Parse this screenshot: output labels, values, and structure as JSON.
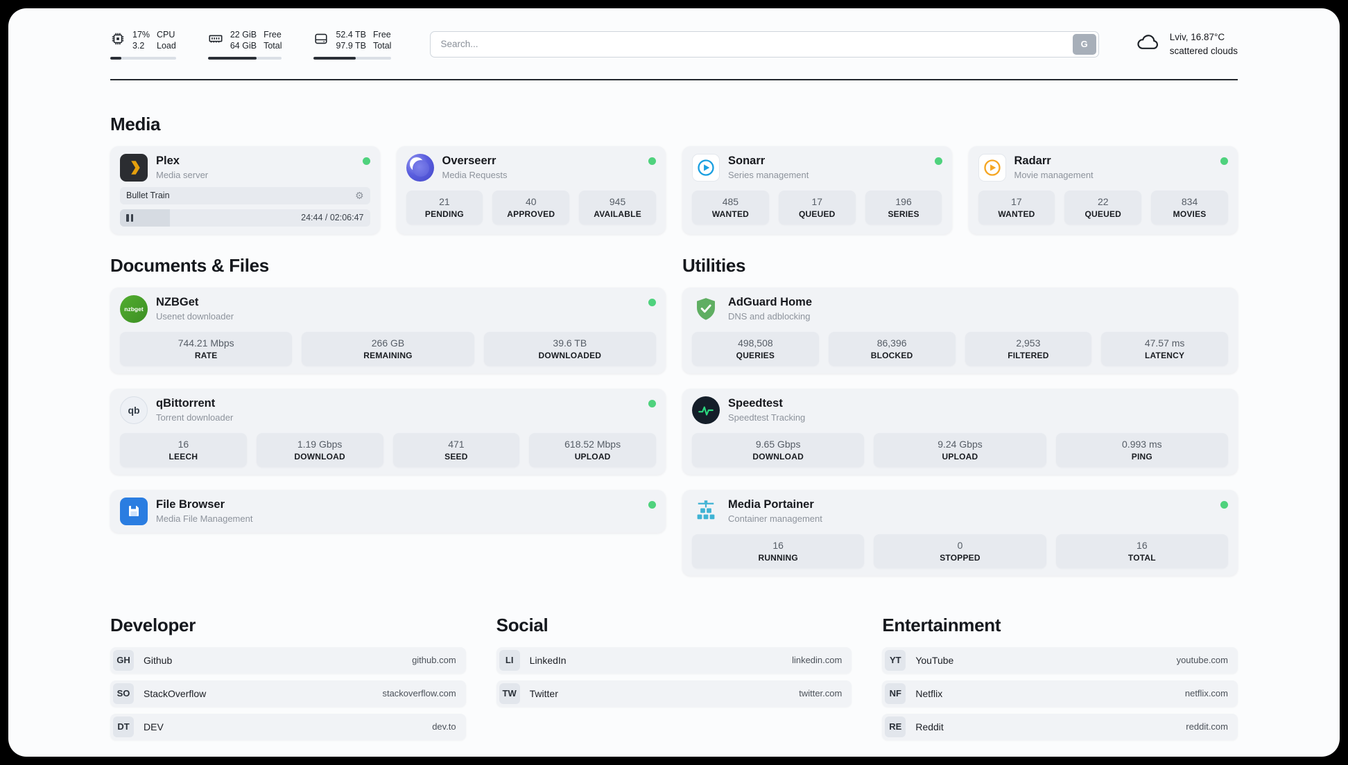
{
  "topbar": {
    "cpu": {
      "line1": "17%",
      "line2": "3.2",
      "label1": "CPU",
      "label2": "Load",
      "percent": 17
    },
    "memory": {
      "line1": "22 GiB",
      "line2": "64 GiB",
      "label1": "Free",
      "label2": "Total",
      "percent": 66
    },
    "disk": {
      "line1": "52.4 TB",
      "line2": "97.9 TB",
      "label1": "Free",
      "label2": "Total",
      "percent": 54
    },
    "search": {
      "placeholder": "Search...",
      "engine_label": "G"
    },
    "weather": {
      "location": "Lviv, 16.87°C",
      "condition": "scattered clouds"
    }
  },
  "media": {
    "title": "Media",
    "plex": {
      "name": "Plex",
      "subtitle": "Media server",
      "now_playing": "Bullet Train",
      "time": "24:44 / 02:06:47",
      "progress": 20
    },
    "overseerr": {
      "name": "Overseerr",
      "subtitle": "Media Requests",
      "stats": [
        {
          "value": "21",
          "label": "PENDING"
        },
        {
          "value": "40",
          "label": "APPROVED"
        },
        {
          "value": "945",
          "label": "AVAILABLE"
        }
      ]
    },
    "sonarr": {
      "name": "Sonarr",
      "subtitle": "Series management",
      "stats": [
        {
          "value": "485",
          "label": "WANTED"
        },
        {
          "value": "17",
          "label": "QUEUED"
        },
        {
          "value": "196",
          "label": "SERIES"
        }
      ]
    },
    "radarr": {
      "name": "Radarr",
      "subtitle": "Movie management",
      "stats": [
        {
          "value": "17",
          "label": "WANTED"
        },
        {
          "value": "22",
          "label": "QUEUED"
        },
        {
          "value": "834",
          "label": "MOVIES"
        }
      ]
    }
  },
  "documents": {
    "title": "Documents & Files",
    "nzbget": {
      "name": "NZBGet",
      "subtitle": "Usenet downloader",
      "icon_text": "nzbget",
      "stats": [
        {
          "value": "744.21 Mbps",
          "label": "RATE"
        },
        {
          "value": "266 GB",
          "label": "REMAINING"
        },
        {
          "value": "39.6 TB",
          "label": "DOWNLOADED"
        }
      ]
    },
    "qbittorrent": {
      "name": "qBittorrent",
      "subtitle": "Torrent downloader",
      "icon_text": "qb",
      "stats": [
        {
          "value": "16",
          "label": "LEECH"
        },
        {
          "value": "1.19 Gbps",
          "label": "DOWNLOAD"
        },
        {
          "value": "471",
          "label": "SEED"
        },
        {
          "value": "618.52 Mbps",
          "label": "UPLOAD"
        }
      ]
    },
    "filebrowser": {
      "name": "File Browser",
      "subtitle": "Media File Management"
    }
  },
  "utilities": {
    "title": "Utilities",
    "adguard": {
      "name": "AdGuard Home",
      "subtitle": "DNS and adblocking",
      "stats": [
        {
          "value": "498,508",
          "label": "QUERIES"
        },
        {
          "value": "86,396",
          "label": "BLOCKED"
        },
        {
          "value": "2,953",
          "label": "FILTERED"
        },
        {
          "value": "47.57 ms",
          "label": "LATENCY"
        }
      ]
    },
    "speedtest": {
      "name": "Speedtest",
      "subtitle": "Speedtest Tracking",
      "stats": [
        {
          "value": "9.65 Gbps",
          "label": "DOWNLOAD"
        },
        {
          "value": "9.24 Gbps",
          "label": "UPLOAD"
        },
        {
          "value": "0.993 ms",
          "label": "PING"
        }
      ]
    },
    "portainer": {
      "name": "Media Portainer",
      "subtitle": "Container management",
      "stats": [
        {
          "value": "16",
          "label": "RUNNING"
        },
        {
          "value": "0",
          "label": "STOPPED"
        },
        {
          "value": "16",
          "label": "TOTAL"
        }
      ]
    }
  },
  "bookmarks": {
    "developer": {
      "title": "Developer",
      "items": [
        {
          "abbr": "GH",
          "name": "Github",
          "url": "github.com"
        },
        {
          "abbr": "SO",
          "name": "StackOverflow",
          "url": "stackoverflow.com"
        },
        {
          "abbr": "DT",
          "name": "DEV",
          "url": "dev.to"
        }
      ]
    },
    "social": {
      "title": "Social",
      "items": [
        {
          "abbr": "LI",
          "name": "LinkedIn",
          "url": "linkedin.com"
        },
        {
          "abbr": "TW",
          "name": "Twitter",
          "url": "twitter.com"
        }
      ]
    },
    "entertainment": {
      "title": "Entertainment",
      "items": [
        {
          "abbr": "YT",
          "name": "YouTube",
          "url": "youtube.com"
        },
        {
          "abbr": "NF",
          "name": "Netflix",
          "url": "netflix.com"
        },
        {
          "abbr": "RE",
          "name": "Reddit",
          "url": "reddit.com"
        }
      ]
    }
  }
}
